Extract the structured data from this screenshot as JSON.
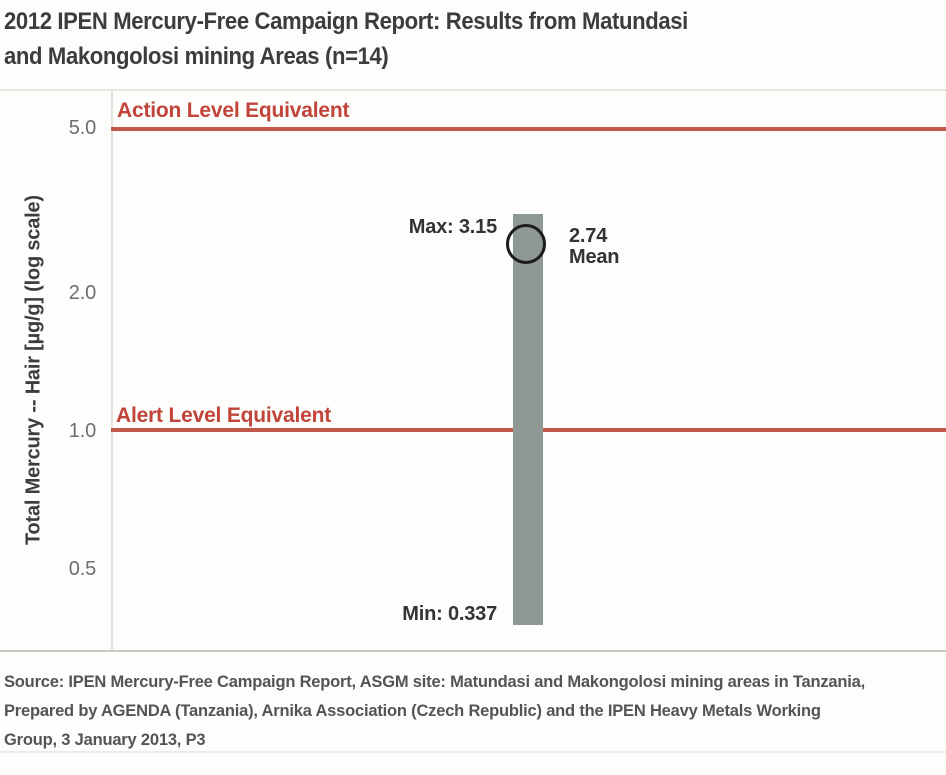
{
  "page": {
    "title_line1": "2012 IPEN Mercury-Free Campaign Report: Results from Matundasi",
    "title_line2": "and Makongolosi mining Areas (n=14)",
    "source_text": "Source: IPEN Mercury-Free Campaign Report, ASGM site: Matundasi and Makongolosi mining areas in Tanzania, Prepared by AGENDA (Tanzania), Arnika Association (Czech Republic) and the IPEN Heavy Metals Working Group, 3 January 2013, P3"
  },
  "axis": {
    "ylabel": "Total Mercury -- Hair [µg/g] (log scale)",
    "ticks": [
      "5.0",
      "2.0",
      "1.0",
      "0.5"
    ]
  },
  "annotations": {
    "action_line_label": "Action Level Equivalent",
    "alert_line_label": "Alert Level Equivalent",
    "max_label": "Max: 3.15",
    "min_label": "Min: 0.337",
    "mean_value": "2.74",
    "mean_label": "Mean"
  },
  "chart_data": {
    "type": "bar",
    "title": "2012 IPEN Mercury-Free Campaign Report: Results from Matundasi and Makongolosi mining Areas (n=14)",
    "ylabel": "Total Mercury -- Hair [µg/g] (log scale)",
    "yscale": "log",
    "ytick_values": [
      5.0,
      2.0,
      1.0,
      0.5
    ],
    "ylim": [
      0.3,
      6.0
    ],
    "sample_size": 14,
    "series": [
      {
        "name": "Total mercury in hair, Matundasi and Makongolosi mining areas",
        "min": 0.337,
        "max": 3.15,
        "mean": 2.74
      }
    ],
    "reference_lines": [
      {
        "label": "Action Level Equivalent",
        "value": 5.0
      },
      {
        "label": "Alert Level Equivalent",
        "value": 1.0
      }
    ],
    "legend": "off",
    "grid": "off"
  },
  "colors": {
    "bar": "#8e9993",
    "reference_line": "#c4574b",
    "reference_text": "#c0443a",
    "title_text": "#3c3c3c",
    "tick_text": "#6e6e6e",
    "data_label_text": "#333333",
    "source_text": "#545457"
  }
}
